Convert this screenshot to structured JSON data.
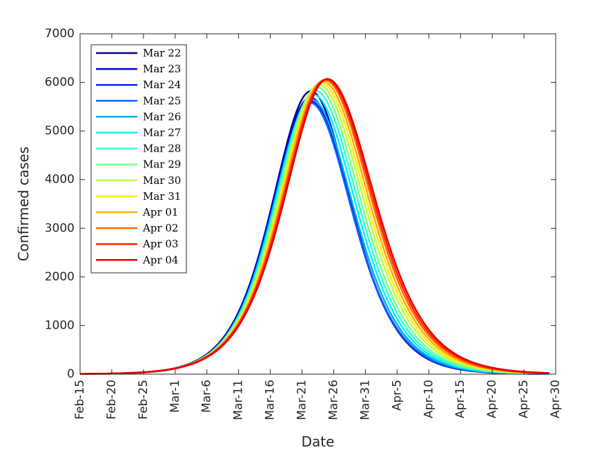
{
  "chart_data": {
    "type": "line",
    "xlabel": "Date",
    "ylabel": "Confirmed cases",
    "xlim": [
      0,
      75
    ],
    "ylim": [
      0,
      7000
    ],
    "x_tick_values": [
      0,
      5,
      10,
      15,
      20,
      25,
      30,
      35,
      40,
      45,
      50,
      55,
      60,
      65,
      70,
      75
    ],
    "x_tick_labels": [
      "Feb-15",
      "Feb-20",
      "Feb-25",
      "Mar-1",
      "Mar-6",
      "Mar-11",
      "Mar-16",
      "Mar-21",
      "Mar-26",
      "Mar-31",
      "Apr-5",
      "Apr-10",
      "Apr-15",
      "Apr-20",
      "Apr-25",
      "Apr-30"
    ],
    "y_ticks": [
      0,
      1000,
      2000,
      3000,
      4000,
      5000,
      6000,
      7000
    ],
    "x_range_data": [
      0,
      74
    ],
    "grid": false,
    "box": true,
    "legend_position": "top-left",
    "series": [
      {
        "name": "Mar 22",
        "color": "#00008f",
        "peak": 5820,
        "peak_day": 36.4,
        "width_left": 8.2,
        "width_right": 8.6
      },
      {
        "name": "Mar 23",
        "color": "#0000d9",
        "peak": 5690,
        "peak_day": 36.3,
        "width_left": 8.1,
        "width_right": 8.8
      },
      {
        "name": "Mar 24",
        "color": "#0022ff",
        "peak": 5620,
        "peak_day": 36.3,
        "width_left": 8.1,
        "width_right": 8.8
      },
      {
        "name": "Mar 25",
        "color": "#0066ff",
        "peak": 5580,
        "peak_day": 36.3,
        "width_left": 8.1,
        "width_right": 8.9
      },
      {
        "name": "Mar 26",
        "color": "#00aaff",
        "peak": 5650,
        "peak_day": 36.5,
        "width_left": 8.2,
        "width_right": 9.0
      },
      {
        "name": "Mar 27",
        "color": "#00eeff",
        "peak": 5750,
        "peak_day": 36.8,
        "width_left": 8.3,
        "width_right": 9.1
      },
      {
        "name": "Mar 28",
        "color": "#33ffcc",
        "peak": 5830,
        "peak_day": 37.1,
        "width_left": 8.4,
        "width_right": 9.2
      },
      {
        "name": "Mar 29",
        "color": "#77ff88",
        "peak": 5900,
        "peak_day": 37.4,
        "width_left": 8.5,
        "width_right": 9.3
      },
      {
        "name": "Mar 30",
        "color": "#bbff44",
        "peak": 5950,
        "peak_day": 37.7,
        "width_left": 8.6,
        "width_right": 9.5
      },
      {
        "name": "Mar 31",
        "color": "#ffee00",
        "peak": 5990,
        "peak_day": 38.0,
        "width_left": 8.7,
        "width_right": 9.6
      },
      {
        "name": "Apr 01",
        "color": "#ffaa00",
        "peak": 6020,
        "peak_day": 38.3,
        "width_left": 8.8,
        "width_right": 9.7
      },
      {
        "name": "Apr 02",
        "color": "#ff6600",
        "peak": 6050,
        "peak_day": 38.6,
        "width_left": 8.9,
        "width_right": 9.8
      },
      {
        "name": "Apr 03",
        "color": "#ff2200",
        "peak": 6060,
        "peak_day": 38.8,
        "width_left": 9.0,
        "width_right": 9.9
      },
      {
        "name": "Apr 04",
        "color": "#e60000",
        "peak": 6070,
        "peak_day": 39.0,
        "width_left": 9.0,
        "width_right": 10.0
      }
    ]
  }
}
